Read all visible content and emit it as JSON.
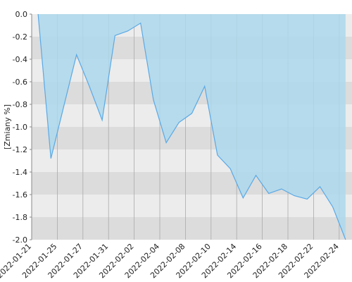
{
  "chart_data": {
    "type": "area-line",
    "y_label": "[Zmiany %]",
    "categories": [
      "2022-01-21",
      null,
      "2022-01-25",
      null,
      "2022-01-27",
      null,
      "2022-01-31",
      null,
      "2022-02-02",
      null,
      "2022-02-04",
      null,
      "2022-02-08",
      null,
      "2022-02-10",
      null,
      "2022-02-14",
      null,
      "2022-02-16",
      null,
      "2022-02-18",
      null,
      "2022-02-22",
      null,
      "2022-02-24"
    ],
    "series": [
      {
        "color": "#5aa9e6",
        "fill": "#add8ec",
        "values": [
          0.0,
          -1.28,
          -0.82,
          -0.36,
          -0.64,
          -0.94,
          -0.19,
          -0.15,
          -0.08,
          -0.76,
          -1.14,
          -0.96,
          -0.88,
          -0.64,
          -1.25,
          -1.37,
          -1.63,
          -1.43,
          -1.59,
          -1.55,
          -1.61,
          -1.64,
          -1.53,
          -1.71,
          -2.0
        ]
      }
    ],
    "ylim": [
      -2.0,
      0.0
    ],
    "yticks": [
      {
        "value": -2.0,
        "label": "-2.0"
      },
      -1.8,
      -1.6,
      -1.4,
      -1.2,
      {
        "value": -1.0,
        "label": "-1.0"
      },
      -0.8,
      -0.6,
      -0.4,
      -0.2,
      {
        "value": 0.0,
        "label": "0.0"
      }
    ],
    "stripe_colors": [
      "#ececec",
      "#dcdcdc"
    ],
    "grid": true
  }
}
